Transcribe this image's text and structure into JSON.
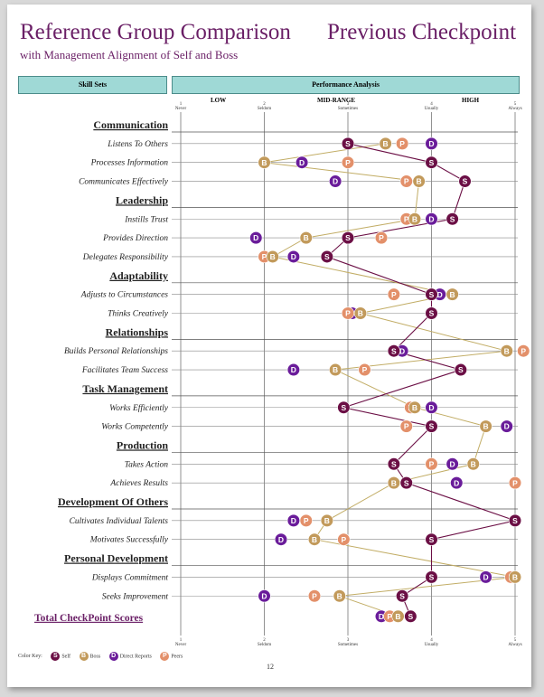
{
  "header": {
    "title": "Reference Group Comparison",
    "title_right": "Previous Checkpoint",
    "subtitle": "with Management Alignment of Self and Boss",
    "skill_sets_label": "Skill Sets",
    "performance_label": "Performance Analysis",
    "range_labels": {
      "low": "LOW",
      "mid": "MID-RANGE",
      "high": "HIGH"
    }
  },
  "scale": {
    "values": [
      1,
      2,
      3,
      4,
      5
    ],
    "labels": [
      "Never",
      "Seldom",
      "Sometimes",
      "Usually",
      "Always"
    ],
    "numbers": [
      "1",
      "2",
      "3",
      "4",
      "5"
    ]
  },
  "colors": {
    "Self": "#6b0f45",
    "Boss": "#c29a5b",
    "Direct Reports": "#6a1c9a",
    "Peers": "#e3906a",
    "self_line": "#6b0f45",
    "boss_line": "#c2ad66",
    "title": "#6a1f66",
    "header_fill": "#9fd9d6"
  },
  "color_key": {
    "label": "Color Key:",
    "items": [
      {
        "name": "Self",
        "letter": "S"
      },
      {
        "name": "Boss",
        "letter": "B"
      },
      {
        "name": "Direct Reports",
        "letter": "D"
      },
      {
        "name": "Peers",
        "letter": "P"
      }
    ]
  },
  "page_number": "12",
  "chart_data": {
    "type": "scatter",
    "title": "Reference Group Comparison",
    "xlabel": "Performance Analysis",
    "xlim": [
      1,
      5
    ],
    "x_ticks": [
      "1 Never",
      "2 Seldom",
      "3 Sometimes",
      "4 Usually",
      "5 Always"
    ],
    "series_names": [
      "Self",
      "Boss",
      "Direct Reports",
      "Peers"
    ],
    "rows": [
      {
        "type": "category",
        "label": "Communication"
      },
      {
        "type": "skill",
        "label": "Listens To Others",
        "Self": 3.0,
        "Boss": 3.45,
        "Direct Reports": 4.0,
        "Peers": 3.65
      },
      {
        "type": "skill",
        "label": "Processes Information",
        "Self": 4.0,
        "Boss": 2.0,
        "Direct Reports": 2.45,
        "Peers": 3.0
      },
      {
        "type": "skill",
        "label": "Communicates Effectively",
        "Self": 4.4,
        "Boss": 3.85,
        "Direct Reports": 2.85,
        "Peers": 3.7
      },
      {
        "type": "category",
        "label": "Leadership"
      },
      {
        "type": "skill",
        "label": "Instills Trust",
        "Self": 4.25,
        "Boss": 3.8,
        "Direct Reports": 4.0,
        "Peers": 3.7
      },
      {
        "type": "skill",
        "label": "Provides Direction",
        "Self": 3.0,
        "Boss": 2.5,
        "Direct Reports": 1.9,
        "Peers": 3.4
      },
      {
        "type": "skill",
        "label": "Delegates Responsibility",
        "Self": 2.75,
        "Boss": 2.1,
        "Direct Reports": 2.35,
        "Peers": 2.0
      },
      {
        "type": "category",
        "label": "Adaptability"
      },
      {
        "type": "skill",
        "label": "Adjusts to Circumstances",
        "Self": 4.0,
        "Boss": 4.25,
        "Direct Reports": 4.1,
        "Peers": 3.55
      },
      {
        "type": "skill",
        "label": "Thinks Creatively",
        "Self": 4.0,
        "Boss": 3.15,
        "Direct Reports": 3.05,
        "Peers": 3.0
      },
      {
        "type": "category",
        "label": "Relationships"
      },
      {
        "type": "skill",
        "label": "Builds Personal Relationships",
        "Self": 3.55,
        "Boss": 4.9,
        "Direct Reports": 3.65,
        "Peers": 5.1
      },
      {
        "type": "skill",
        "label": "Facilitates Team Success",
        "Self": 4.35,
        "Boss": 2.85,
        "Direct Reports": 2.35,
        "Peers": 3.2
      },
      {
        "type": "category",
        "label": "Task Management"
      },
      {
        "type": "skill",
        "label": "Works Efficiently",
        "Self": 2.95,
        "Boss": 3.8,
        "Direct Reports": 4.0,
        "Peers": 3.75
      },
      {
        "type": "skill",
        "label": "Works Competently",
        "Self": 4.0,
        "Boss": 4.65,
        "Direct Reports": 4.9,
        "Peers": 3.7
      },
      {
        "type": "category",
        "label": "Production"
      },
      {
        "type": "skill",
        "label": "Takes Action",
        "Self": 3.55,
        "Boss": 4.5,
        "Direct Reports": 4.25,
        "Peers": 4.0
      },
      {
        "type": "skill",
        "label": "Achieves Results",
        "Self": 3.7,
        "Boss": 3.55,
        "Direct Reports": 4.3,
        "Peers": 5.0
      },
      {
        "type": "category",
        "label": "Development Of Others"
      },
      {
        "type": "skill",
        "label": "Cultivates Individual Talents",
        "Self": 5.0,
        "Boss": 2.75,
        "Direct Reports": 2.35,
        "Peers": 2.5
      },
      {
        "type": "skill",
        "label": "Motivates Successfully",
        "Self": 4.0,
        "Boss": 2.6,
        "Direct Reports": 2.2,
        "Peers": 2.95
      },
      {
        "type": "category",
        "label": "Personal Development"
      },
      {
        "type": "skill",
        "label": "Displays Commitment",
        "Self": 4.0,
        "Boss": 5.0,
        "Direct Reports": 4.65,
        "Peers": 4.95
      },
      {
        "type": "skill",
        "label": "Seeks Improvement",
        "Self": 3.65,
        "Boss": 2.9,
        "Direct Reports": 2.0,
        "Peers": 2.6
      },
      {
        "type": "total",
        "label": "Total CheckPoint Scores",
        "Self": 3.75,
        "Boss": 3.6,
        "Direct Reports": 3.4,
        "Peers": 3.5
      }
    ]
  }
}
